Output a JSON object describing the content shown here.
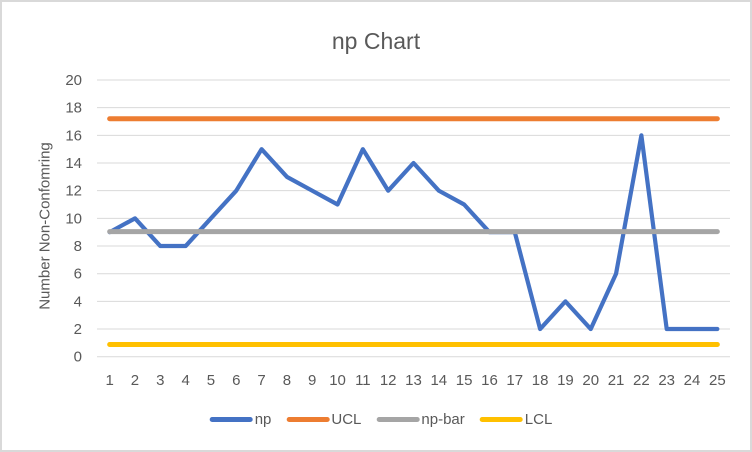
{
  "chart_data": {
    "type": "line",
    "title": "np Chart",
    "ylabel": "Number Non-Confomring",
    "xlabel": "",
    "ylim": [
      0,
      20
    ],
    "ytick_step": 2,
    "grid": "horizontal",
    "legend_position": "bottom",
    "x": [
      1,
      2,
      3,
      4,
      5,
      6,
      7,
      8,
      9,
      10,
      11,
      12,
      13,
      14,
      15,
      16,
      17,
      18,
      19,
      20,
      21,
      22,
      23,
      24,
      25
    ],
    "series": [
      {
        "name": "np",
        "color": "#4472C4",
        "values": [
          9,
          10,
          8,
          8,
          10,
          12,
          15,
          13,
          12,
          11,
          15,
          12,
          14,
          12,
          11,
          9,
          9,
          2,
          4,
          2,
          6,
          16,
          2,
          2,
          2
        ]
      },
      {
        "name": "UCL",
        "color": "#ED7D31",
        "constant": 17.2
      },
      {
        "name": "np-bar",
        "color": "#A5A5A5",
        "constant": 9.04
      },
      {
        "name": "LCL",
        "color": "#FFC000",
        "constant": 0.88
      }
    ]
  },
  "colors": {
    "background": "#FFFFFF",
    "border": "#D9D9D9",
    "gridline": "#D9D9D9",
    "text": "#595959"
  }
}
